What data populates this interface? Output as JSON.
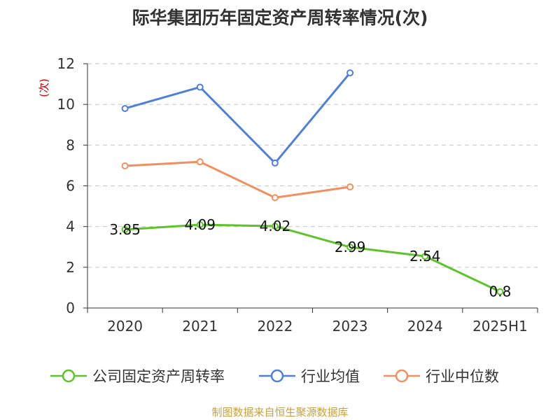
{
  "chart_data": {
    "type": "line",
    "title": "际华集团历年固定资产周转率情况(次)",
    "ylabel": "(次)",
    "categories": [
      "2020",
      "2021",
      "2022",
      "2023",
      "2024",
      "2025H1"
    ],
    "ylim": [
      0,
      12
    ],
    "yticks": [
      0,
      2,
      4,
      6,
      8,
      10,
      12
    ],
    "grid": true,
    "legend_position": "bottom",
    "series": [
      {
        "name": "公司固定资产周转率",
        "color": "#5ec22b",
        "values": [
          3.85,
          4.09,
          4.02,
          2.99,
          2.54,
          0.8
        ],
        "labels": [
          "3.85",
          "4.09",
          "4.02",
          "2.99",
          "2.54",
          "0.8"
        ]
      },
      {
        "name": "行业均值",
        "color": "#4f7fd6",
        "values": [
          9.8,
          10.85,
          7.12,
          11.55,
          null,
          null
        ]
      },
      {
        "name": "行业中位数",
        "color": "#f09060",
        "values": [
          6.98,
          7.18,
          5.42,
          5.95,
          null,
          null
        ]
      }
    ]
  },
  "source": "制图数据来自恒生聚源数据库",
  "colors": {
    "ylabel": "#cc0000",
    "axis": "#333333",
    "grid": "#cccccc",
    "source": "#c8a040"
  }
}
